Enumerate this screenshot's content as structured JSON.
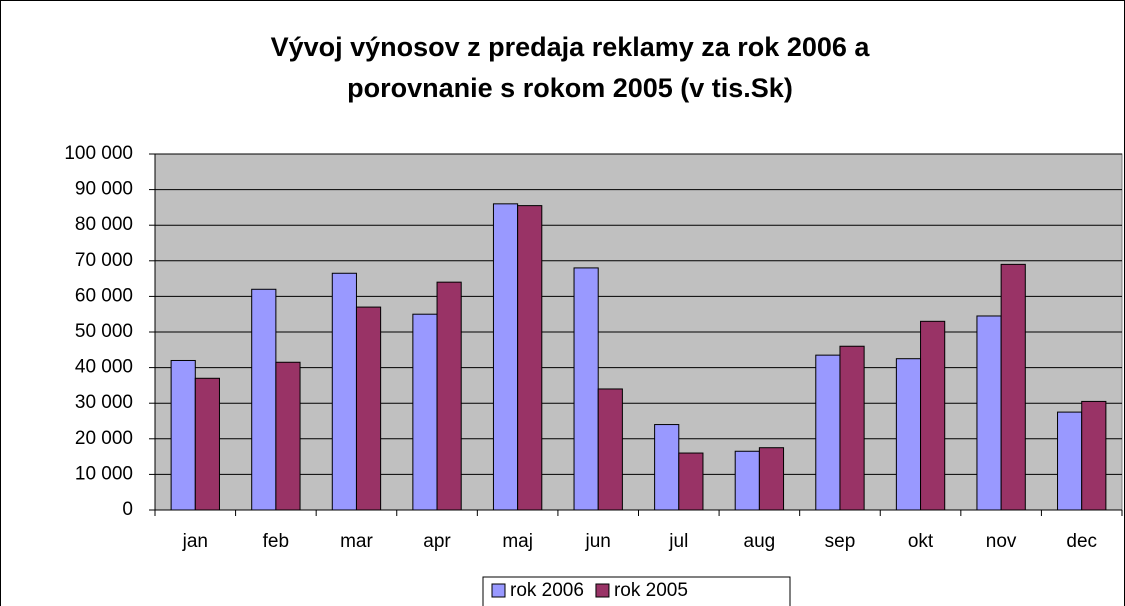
{
  "chart_data": {
    "type": "bar",
    "title": [
      "Vývoj výnosov z predaja reklamy za rok 2006 a",
      "porovnanie s rokom 2005 (v tis.Sk)"
    ],
    "categories": [
      "jan",
      "feb",
      "mar",
      "apr",
      "maj",
      "jun",
      "jul",
      "aug",
      "sep",
      "okt",
      "nov",
      "dec"
    ],
    "series": [
      {
        "name": "rok 2006",
        "color": "#9999ff",
        "values": [
          42000,
          62000,
          66500,
          55000,
          86000,
          68000,
          24000,
          16500,
          43500,
          42500,
          54500,
          27500
        ]
      },
      {
        "name": "rok 2005",
        "color": "#993366",
        "values": [
          37000,
          41500,
          57000,
          64000,
          85500,
          34000,
          16000,
          17500,
          46000,
          53000,
          69000,
          30500
        ]
      }
    ],
    "ylim": [
      0,
      100000
    ],
    "yticks": [
      0,
      {
        "value": 10000,
        "label": "10 000"
      },
      {
        "value": 20000,
        "label": "20 000"
      },
      {
        "value": 30000,
        "label": "30 000"
      },
      {
        "value": 40000,
        "label": "40 000"
      },
      {
        "value": 50000,
        "label": "50 000"
      },
      {
        "value": 60000,
        "label": "60 000"
      },
      {
        "value": 70000,
        "label": "70 000"
      },
      {
        "value": 80000,
        "label": "80 000"
      },
      {
        "value": 90000,
        "label": "90 000"
      },
      {
        "value": 100000,
        "label": "100 000"
      }
    ],
    "grid": true,
    "legend": "bottom"
  }
}
